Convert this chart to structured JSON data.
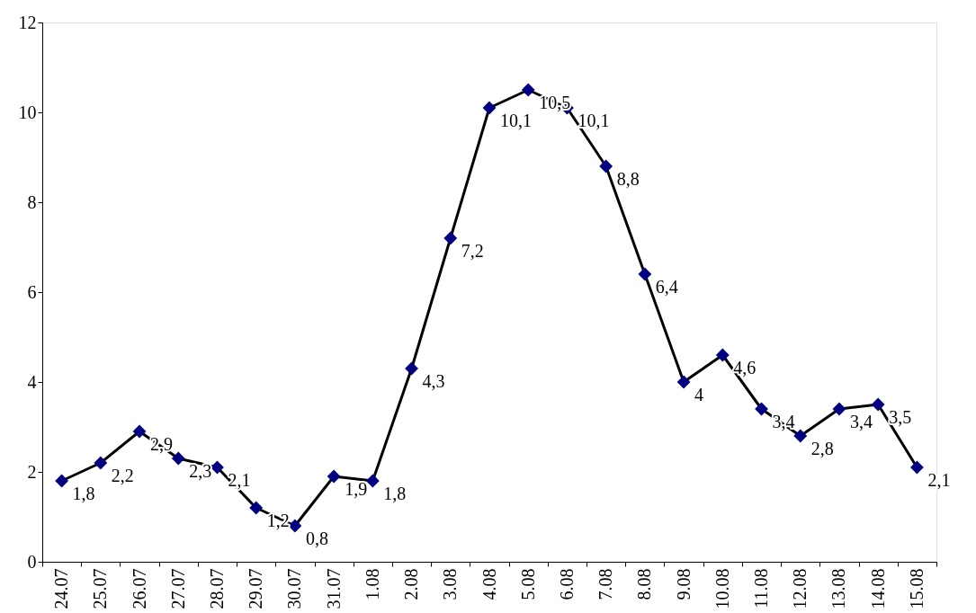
{
  "chart_data": {
    "type": "line",
    "categories": [
      "24.07",
      "25.07",
      "26.07",
      "27.07",
      "28.07",
      "29.07",
      "30.07",
      "31.07",
      "1.08",
      "2.08",
      "3.08",
      "4.08",
      "5.08",
      "6.08",
      "7.08",
      "8.08",
      "9.08",
      "10.08",
      "11.08",
      "12.08",
      "13.08",
      "14.08",
      "15.08"
    ],
    "series": [
      {
        "color": "#000080",
        "values": [
          1.8,
          2.2,
          2.9,
          2.3,
          2.1,
          1.2,
          0.8,
          1.9,
          1.8,
          4.3,
          7.2,
          10.1,
          10.5,
          10.1,
          8.8,
          6.4,
          4,
          4.6,
          3.4,
          2.8,
          3.4,
          3.5,
          2.1
        ],
        "value_labels": [
          "1,8",
          "2,2",
          "2,9",
          "2,3",
          "2,1",
          "1,2",
          "0,8",
          "1,9",
          "1,8",
          "4,3",
          "7,2",
          "10,1",
          "10,5",
          "10,1",
          "8,8",
          "6,4",
          "4",
          "4,6",
          "3,4",
          "2,8",
          "3,4",
          "3,5",
          "2,1"
        ]
      }
    ],
    "ylim": [
      0,
      12
    ],
    "yticks": [
      0,
      2,
      4,
      6,
      8,
      10,
      12
    ],
    "grid": false,
    "marker": "diamond",
    "line_style": "solid"
  }
}
